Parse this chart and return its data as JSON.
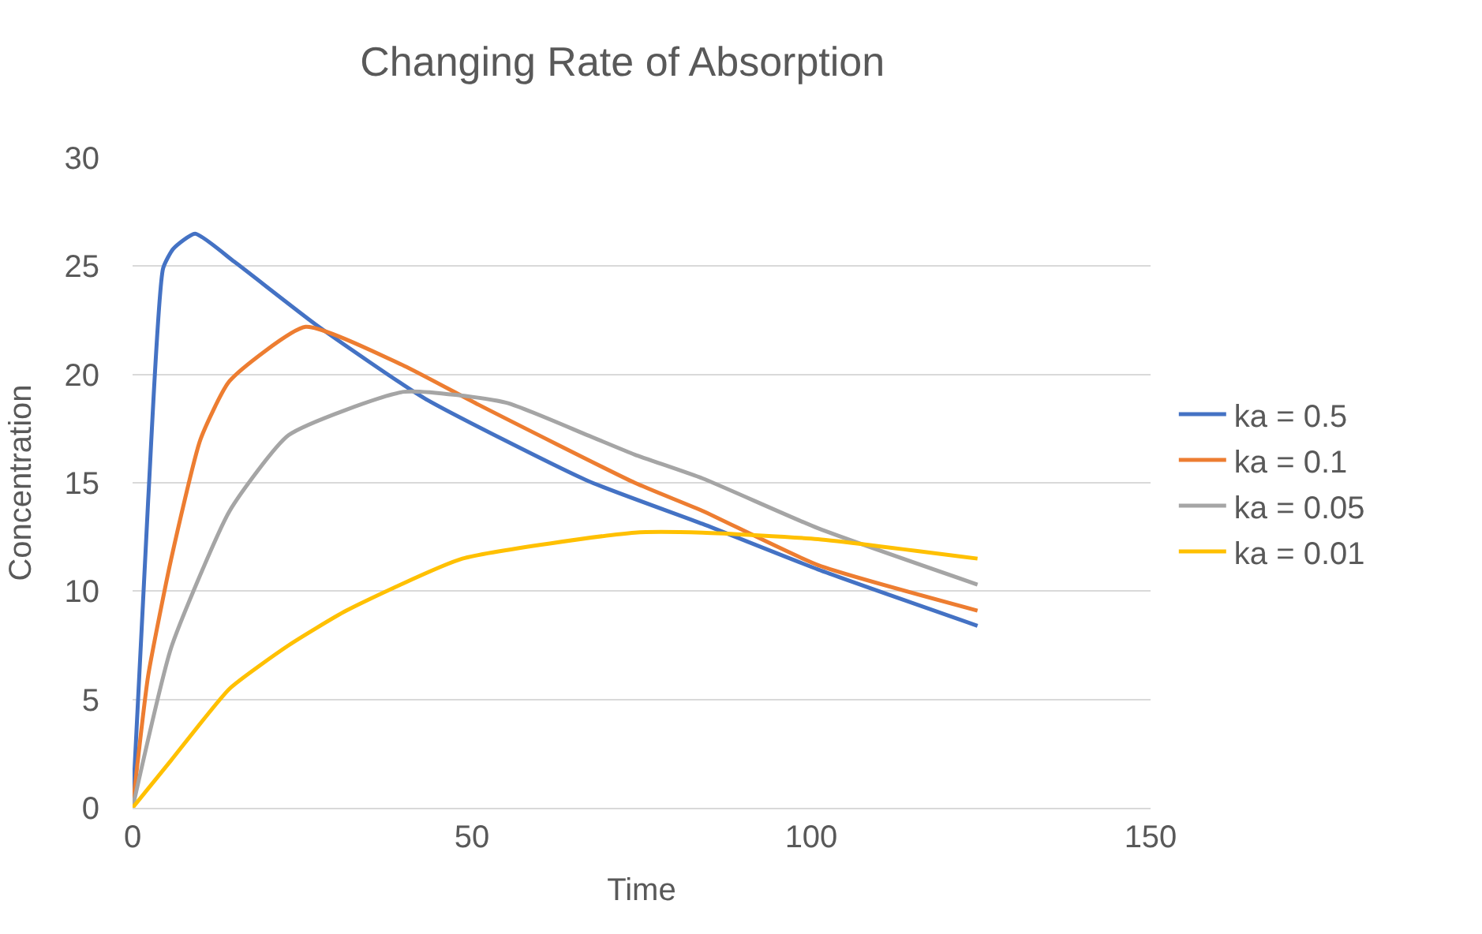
{
  "chart_data": {
    "type": "line",
    "title": "Changing Rate of Absorption",
    "xlabel": "Time",
    "ylabel": "Concentration",
    "xlim": [
      0,
      150
    ],
    "xticks": [
      0,
      50,
      100,
      150
    ],
    "ylim": [
      0,
      30
    ],
    "yticks": [
      0,
      5,
      10,
      15,
      20,
      25,
      30
    ],
    "grid": "y",
    "legend": "right",
    "marker": "none",
    "line_style": "solid",
    "series": [
      {
        "name": "ka = 0.5",
        "color": "#4472c4",
        "x": [
          0,
          2.3,
          4.5,
          6,
          9.2,
          15,
          27,
          43,
          67,
          84,
          101,
          124.5
        ],
        "values": [
          0,
          14.2,
          24.9,
          25.8,
          26.5,
          25.2,
          22.3,
          18.9,
          15.1,
          13.1,
          11.0,
          8.4
        ]
      },
      {
        "name": "ka = 0.1",
        "color": "#ed7d31",
        "x": [
          0,
          2.3,
          5.7,
          10,
          14.3,
          25.5,
          40,
          51,
          74,
          84,
          101,
          124.5
        ],
        "values": [
          0,
          6.1,
          11.5,
          17.0,
          19.7,
          22.2,
          20.4,
          18.6,
          15.0,
          13.7,
          11.2,
          9.1
        ]
      },
      {
        "name": "ka = 0.05",
        "color": "#a5a5a5",
        "x": [
          0,
          5.7,
          14.3,
          23,
          40,
          55,
          67,
          74,
          84,
          101,
          124.5
        ],
        "values": [
          0,
          7.4,
          13.7,
          17.2,
          19.2,
          18.7,
          17.2,
          16.3,
          15.2,
          12.9,
          10.3
        ]
      },
      {
        "name": "ka = 0.01",
        "color": "#ffc000",
        "x": [
          0,
          5.7,
          14.3,
          23,
          31.5,
          48.6,
          74,
          84,
          101,
          124.5
        ],
        "values": [
          0,
          2.2,
          5.5,
          7.5,
          9.1,
          11.5,
          12.7,
          12.7,
          12.4,
          11.5
        ]
      }
    ]
  }
}
